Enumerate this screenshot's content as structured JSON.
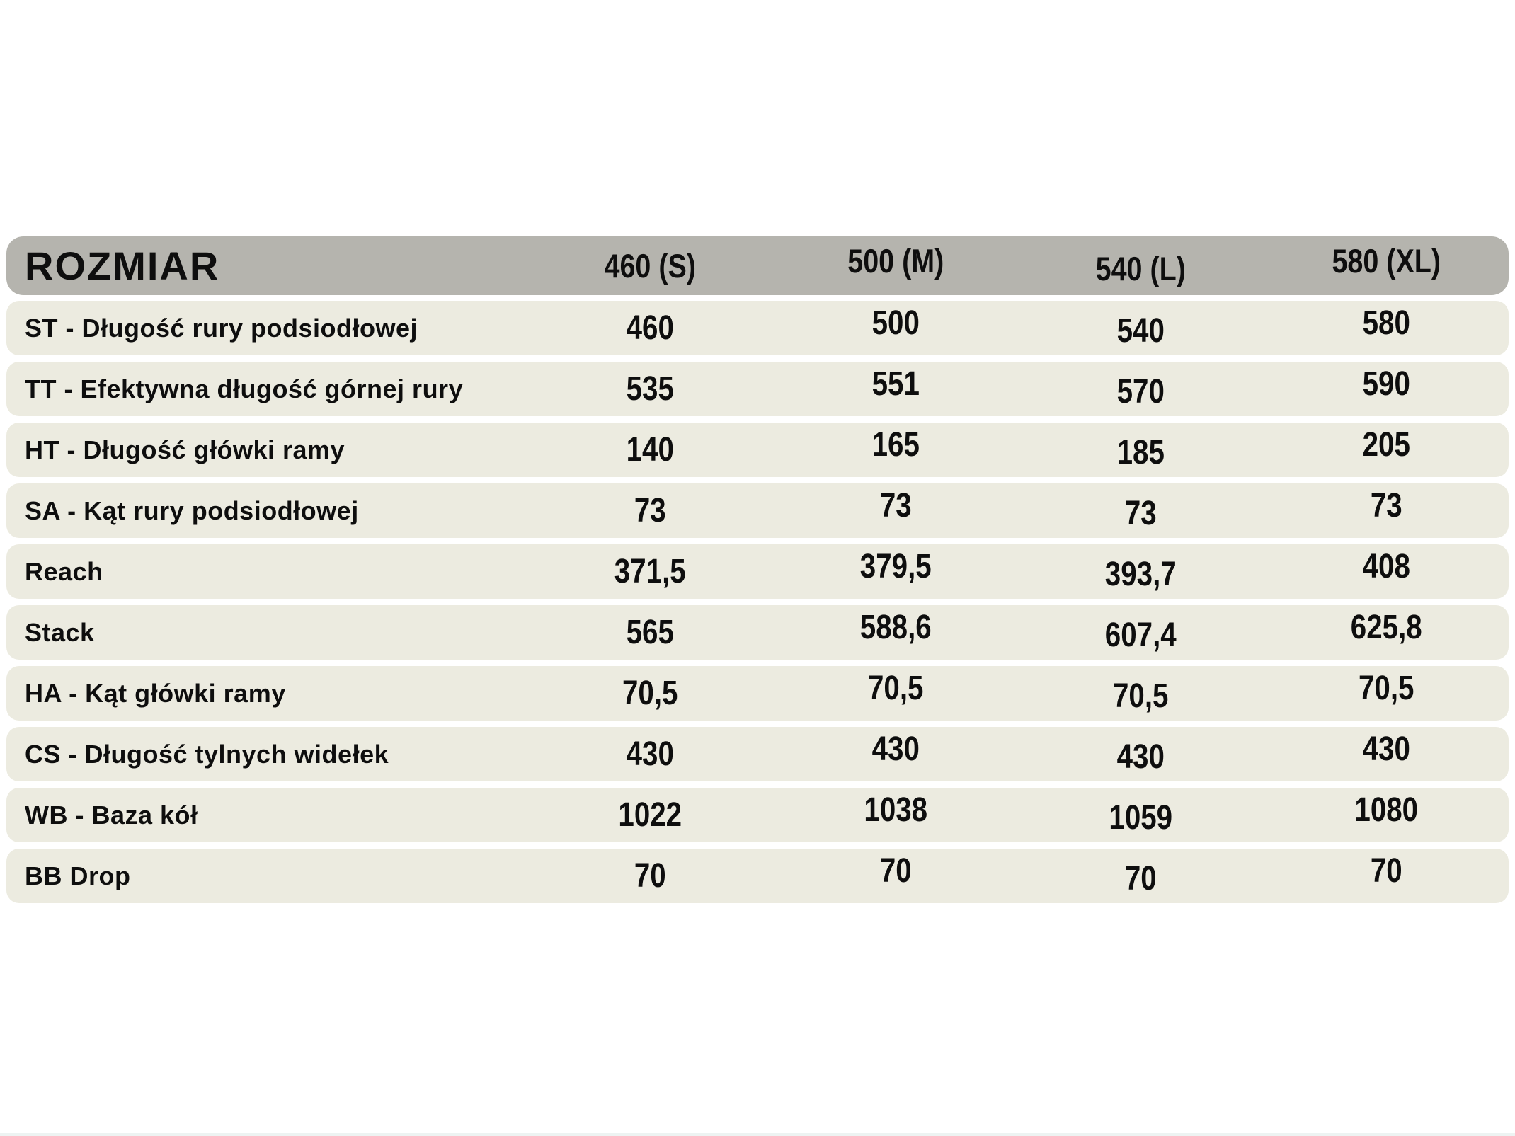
{
  "colors": {
    "page_bg": "#ffffff",
    "header_bg": "#b5b4ae",
    "row_bg": "#ecebe0",
    "text": "#0e0e0e"
  },
  "table": {
    "header": {
      "title": "ROZMIAR",
      "columns": [
        "460 (S)",
        "500 (M)",
        "540 (L)",
        "580 (XL)"
      ]
    },
    "rows": [
      {
        "label": "ST - Długość rury podsiodłowej",
        "values": [
          "460",
          "500",
          "540",
          "580"
        ]
      },
      {
        "label": "TT - Efektywna długość górnej rury",
        "values": [
          "535",
          "551",
          "570",
          "590"
        ]
      },
      {
        "label": "HT - Długość główki ramy",
        "values": [
          "140",
          "165",
          "185",
          "205"
        ]
      },
      {
        "label": "SA - Kąt rury podsiodłowej",
        "values": [
          "73",
          "73",
          "73",
          "73"
        ]
      },
      {
        "label": "Reach",
        "values": [
          "371,5",
          "379,5",
          "393,7",
          "408"
        ]
      },
      {
        "label": "Stack",
        "values": [
          "565",
          "588,6",
          "607,4",
          "625,8"
        ]
      },
      {
        "label": "HA - Kąt główki ramy",
        "values": [
          "70,5",
          "70,5",
          "70,5",
          "70,5"
        ]
      },
      {
        "label": "CS - Długość tylnych widełek",
        "values": [
          "430",
          "430",
          "430",
          "430"
        ]
      },
      {
        "label": "WB - Baza kół",
        "values": [
          "1022",
          "1038",
          "1059",
          "1080"
        ]
      },
      {
        "label": "BB Drop",
        "values": [
          "70",
          "70",
          "70",
          "70"
        ]
      }
    ]
  },
  "chart_data": {
    "type": "table",
    "title": "ROZMIAR",
    "categories": [
      "460 (S)",
      "500 (M)",
      "540 (L)",
      "580 (XL)"
    ],
    "series": [
      {
        "name": "ST - Długość rury podsiodłowej",
        "values": [
          460,
          500,
          540,
          580
        ]
      },
      {
        "name": "TT - Efektywna długość górnej rury",
        "values": [
          535,
          551,
          570,
          590
        ]
      },
      {
        "name": "HT - Długość główki ramy",
        "values": [
          140,
          165,
          185,
          205
        ]
      },
      {
        "name": "SA - Kąt rury podsiodłowej",
        "values": [
          73,
          73,
          73,
          73
        ]
      },
      {
        "name": "Reach",
        "values": [
          371.5,
          379.5,
          393.7,
          408
        ]
      },
      {
        "name": "Stack",
        "values": [
          565,
          588.6,
          607.4,
          625.8
        ]
      },
      {
        "name": "HA - Kąt główki ramy",
        "values": [
          70.5,
          70.5,
          70.5,
          70.5
        ]
      },
      {
        "name": "CS - Długość tylnych widełek",
        "values": [
          430,
          430,
          430,
          430
        ]
      },
      {
        "name": "WB - Baza kół",
        "values": [
          1022,
          1038,
          1059,
          1080
        ]
      },
      {
        "name": "BB Drop",
        "values": [
          70,
          70,
          70,
          70
        ]
      }
    ]
  }
}
